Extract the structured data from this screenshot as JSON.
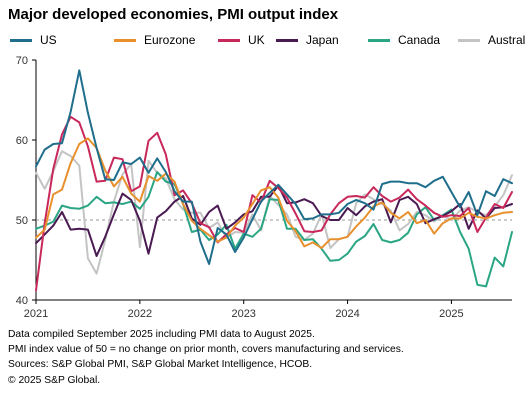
{
  "title": "Major developed economies, PMI output index",
  "chart_data": {
    "type": "line",
    "title": "Major developed economies, PMI output index",
    "xlabel": "",
    "ylabel": "",
    "x_start": "2021-01",
    "x_end": "2025-08",
    "xtick_labels": [
      "2021",
      "2022",
      "2023",
      "2024",
      "2025"
    ],
    "ylim": [
      40,
      70
    ],
    "yticks": [
      40,
      50,
      60,
      70
    ],
    "reference_line": 50,
    "grid": false,
    "legend_position": "top",
    "series": [
      {
        "name": "US",
        "color": "#1f6e8c",
        "values": [
          56.7,
          58.8,
          59.5,
          59.6,
          63.5,
          68.7,
          63.4,
          59.0,
          55.1,
          55.0,
          57.2,
          57.0,
          57.8,
          55.9,
          57.7,
          56.0,
          53.6,
          52.3,
          52.3,
          47.3,
          44.5,
          49.0,
          48.2,
          46.0,
          47.8,
          50.1,
          52.3,
          53.4,
          54.4,
          53.2,
          52.0,
          50.1,
          50.2,
          50.7,
          50.7,
          50.9,
          52.0,
          52.5,
          52.1,
          51.3,
          54.5,
          54.8,
          54.8,
          54.6,
          54.6,
          54.1,
          54.9,
          55.4,
          53.5,
          51.6,
          53.5,
          50.6,
          53.6,
          53.0,
          55.1,
          54.6
        ]
      },
      {
        "name": "Eurozone",
        "color": "#e8902c",
        "values": [
          47.8,
          48.8,
          53.2,
          53.8,
          57.1,
          59.5,
          60.2,
          59.0,
          56.2,
          54.2,
          55.4,
          53.3,
          52.3,
          55.5,
          54.9,
          55.8,
          54.8,
          52.0,
          49.9,
          48.9,
          48.1,
          47.3,
          47.8,
          49.3,
          50.3,
          52.0,
          53.7,
          54.1,
          52.8,
          49.9,
          48.6,
          46.7,
          47.2,
          46.5,
          47.6,
          47.6,
          47.9,
          49.2,
          50.3,
          51.7,
          52.2,
          50.9,
          50.2,
          51.0,
          49.6,
          50.0,
          48.3,
          49.6,
          50.2,
          50.2,
          50.9,
          50.4,
          50.2,
          50.6,
          50.9,
          51.0
        ]
      },
      {
        "name": "UK",
        "color": "#c8285a",
        "values": [
          41.2,
          49.6,
          56.4,
          60.7,
          62.9,
          62.2,
          59.2,
          54.8,
          54.9,
          57.8,
          57.6,
          53.6,
          54.2,
          59.9,
          60.9,
          58.2,
          53.1,
          53.7,
          52.1,
          49.6,
          49.1,
          47.2,
          48.2,
          49.0,
          48.5,
          53.1,
          52.2,
          54.9,
          54.0,
          52.8,
          50.8,
          48.6,
          48.5,
          48.7,
          50.7,
          52.1,
          52.9,
          53.0,
          52.8,
          54.1,
          53.0,
          52.3,
          52.8,
          53.8,
          52.6,
          51.8,
          50.9,
          50.4,
          50.6,
          50.5,
          51.5,
          48.5,
          50.3,
          52.0,
          51.5,
          53.5
        ]
      },
      {
        "name": "Japan",
        "color": "#4a1a52",
        "values": [
          47.1,
          48.2,
          49.3,
          51.0,
          48.8,
          48.9,
          48.8,
          45.5,
          47.9,
          50.7,
          53.3,
          52.5,
          49.9,
          45.8,
          50.3,
          51.1,
          52.3,
          53.0,
          50.2,
          49.4,
          51.0,
          51.8,
          48.9,
          49.7,
          50.7,
          51.1,
          52.9,
          52.9,
          54.3,
          52.1,
          52.2,
          52.6,
          52.1,
          50.5,
          50.0,
          50.0,
          51.5,
          50.6,
          51.7,
          52.3,
          52.6,
          49.7,
          52.5,
          52.9,
          52.0,
          49.6,
          50.1,
          50.5,
          51.1,
          52.0,
          48.9,
          51.2,
          50.2,
          51.5,
          51.6,
          52.0
        ]
      },
      {
        "name": "Canada",
        "color": "#2aa684",
        "values": [
          48.9,
          49.3,
          49.8,
          51.8,
          51.5,
          51.4,
          51.8,
          52.9,
          52.1,
          52.2,
          52.0,
          52.3,
          51.4,
          52.9,
          56.0,
          54.8,
          54.5,
          52.0,
          48.5,
          48.8,
          47.5,
          48.2,
          49.4,
          46.4,
          48.3,
          47.9,
          48.9,
          52.6,
          52.5,
          48.9,
          48.9,
          47.5,
          47.6,
          46.4,
          44.9,
          45.0,
          45.8,
          47.3,
          48.0,
          49.5,
          47.5,
          47.2,
          47.5,
          48.4,
          50.7,
          51.6,
          50.0,
          50.6,
          51.3,
          48.5,
          46.4,
          41.9,
          41.7,
          45.3,
          44.2,
          48.5
        ]
      },
      {
        "name": "Australia",
        "color": "#c4c4c4",
        "values": [
          55.9,
          53.9,
          56.1,
          58.6,
          58.0,
          56.8,
          45.2,
          43.3,
          47.5,
          52.3,
          55.7,
          57.0,
          46.6,
          57.4,
          55.9,
          55.2,
          52.6,
          51.3,
          50.9,
          50.9,
          49.0,
          49.7,
          47.8,
          48.5,
          48.4,
          50.7,
          48.7,
          53.0,
          51.9,
          50.7,
          47.9,
          47.5,
          48.3,
          50.7,
          46.5,
          47.6,
          47.9,
          52.1,
          53.2,
          52.6,
          52.0,
          51.2,
          48.7,
          49.5,
          51.0,
          50.6,
          49.8,
          50.6,
          50.0,
          51.2,
          51.6,
          51.0,
          50.6,
          51.7,
          53.1,
          55.6
        ]
      }
    ]
  },
  "notes": [
    "Data compiled September 2025 including PMI data to August 2025.",
    "PMI index value of 50 = no change on prior month, covers manufacturing and services.",
    "Sources: S&P Global PMI, S&P Global Market Intelligence, HCOB.",
    "© 2025 S&P Global."
  ]
}
